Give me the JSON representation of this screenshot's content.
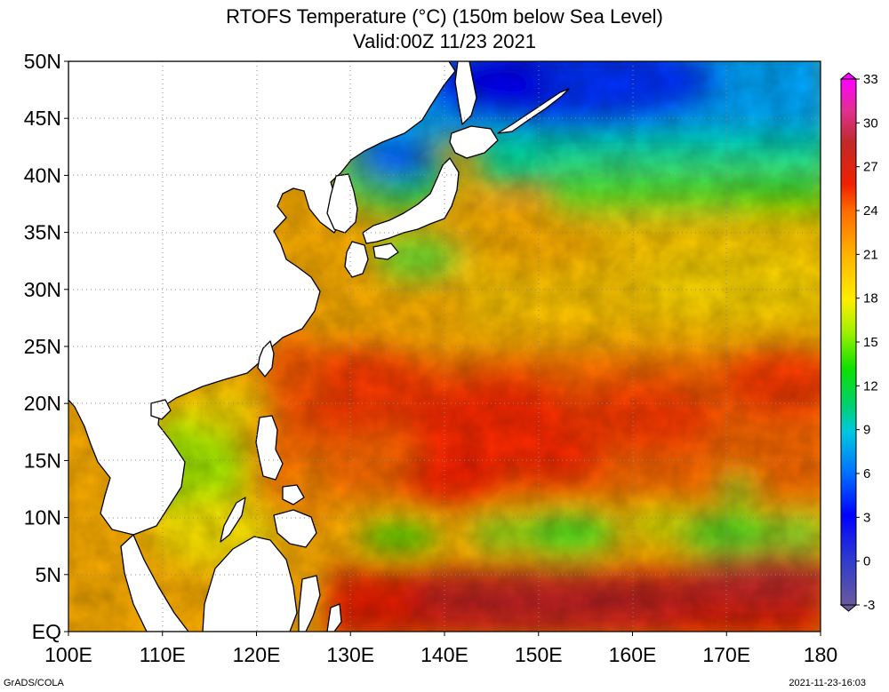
{
  "title": {
    "line1": "RTOFS Temperature (°C) (150m below Sea Level)",
    "line2": "Valid:00Z 11/23 2021"
  },
  "map": {
    "lon_range": [
      100,
      180
    ],
    "lat_range": [
      0,
      50
    ],
    "lat_ticks": [
      {
        "value": 50,
        "label": "50N"
      },
      {
        "value": 45,
        "label": "45N"
      },
      {
        "value": 40,
        "label": "40N"
      },
      {
        "value": 35,
        "label": "35N"
      },
      {
        "value": 30,
        "label": "30N"
      },
      {
        "value": 25,
        "label": "25N"
      },
      {
        "value": 20,
        "label": "20N"
      },
      {
        "value": 15,
        "label": "15N"
      },
      {
        "value": 10,
        "label": "10N"
      },
      {
        "value": 5,
        "label": "5N"
      },
      {
        "value": 0,
        "label": "EQ"
      }
    ],
    "lon_ticks": [
      {
        "value": 100,
        "label": "100E"
      },
      {
        "value": 110,
        "label": "110E"
      },
      {
        "value": 120,
        "label": "120E"
      },
      {
        "value": 130,
        "label": "130E"
      },
      {
        "value": 140,
        "label": "140E"
      },
      {
        "value": 150,
        "label": "150E"
      },
      {
        "value": 160,
        "label": "160E"
      },
      {
        "value": 170,
        "label": "170E"
      },
      {
        "value": 180,
        "label": "180"
      }
    ],
    "grid": "dotted",
    "land_color": "#ffffff",
    "coast_color": "#000000"
  },
  "colorbar": {
    "placement": "right",
    "min": -3,
    "max": 33,
    "labels": [
      "33",
      "30",
      "27",
      "24",
      "21",
      "18",
      "15",
      "12",
      "9",
      "6",
      "3",
      "0",
      "-3"
    ],
    "colors": [
      "#7a5c9c",
      "#2e36c8",
      "#0000ff",
      "#0060ff",
      "#00a8ff",
      "#00e0c8",
      "#00d860",
      "#20e800",
      "#a8f000",
      "#ffee00",
      "#ffc400",
      "#ff9a00",
      "#ff5a00",
      "#e81a00",
      "#c02a2a",
      "#ff40c0",
      "#ff00ff"
    ]
  },
  "footer": {
    "left": "GrADS/COLA",
    "right": "2021-11-23-16:03"
  }
}
